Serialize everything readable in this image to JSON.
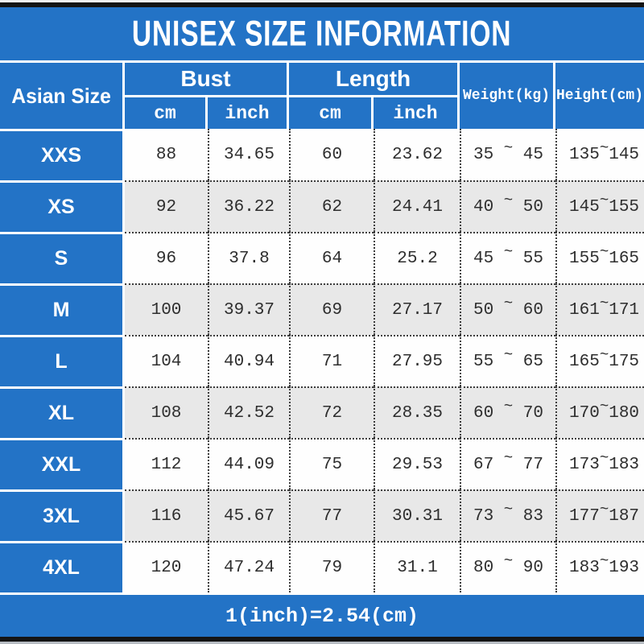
{
  "title": "UNISEX SIZE INFORMATION",
  "colors": {
    "blue": "#2373c6",
    "row_alt": "#e8e8e8",
    "row_white": "#fefefe",
    "text_dark": "#2e2e2e",
    "bar_black": "#141414",
    "dot": "#3d3d3d"
  },
  "table": {
    "range_separator": "~",
    "header": {
      "size_col": "Asian Size",
      "groups": [
        {
          "label": "Bust",
          "sub": [
            "cm",
            "inch"
          ]
        },
        {
          "label": "Length",
          "sub": [
            "cm",
            "inch"
          ]
        }
      ],
      "weight": "Weight(kg)",
      "height": "Height(cm)"
    },
    "rows": [
      {
        "size": "XXS",
        "bust_cm": "88",
        "bust_inch": "34.65",
        "length_cm": "60",
        "length_inch": "23.62",
        "weight_min": "35",
        "weight_max": "45",
        "height_min": "135",
        "height_max": "145"
      },
      {
        "size": "XS",
        "bust_cm": "92",
        "bust_inch": "36.22",
        "length_cm": "62",
        "length_inch": "24.41",
        "weight_min": "40",
        "weight_max": "50",
        "height_min": "145",
        "height_max": "155"
      },
      {
        "size": "S",
        "bust_cm": "96",
        "bust_inch": "37.8",
        "length_cm": "64",
        "length_inch": "25.2",
        "weight_min": "45",
        "weight_max": "55",
        "height_min": "155",
        "height_max": "165"
      },
      {
        "size": "M",
        "bust_cm": "100",
        "bust_inch": "39.37",
        "length_cm": "69",
        "length_inch": "27.17",
        "weight_min": "50",
        "weight_max": "60",
        "height_min": "161",
        "height_max": "171"
      },
      {
        "size": "L",
        "bust_cm": "104",
        "bust_inch": "40.94",
        "length_cm": "71",
        "length_inch": "27.95",
        "weight_min": "55",
        "weight_max": "65",
        "height_min": "165",
        "height_max": "175"
      },
      {
        "size": "XL",
        "bust_cm": "108",
        "bust_inch": "42.52",
        "length_cm": "72",
        "length_inch": "28.35",
        "weight_min": "60",
        "weight_max": "70",
        "height_min": "170",
        "height_max": "180"
      },
      {
        "size": "XXL",
        "bust_cm": "112",
        "bust_inch": "44.09",
        "length_cm": "75",
        "length_inch": "29.53",
        "weight_min": "67",
        "weight_max": "77",
        "height_min": "173",
        "height_max": "183"
      },
      {
        "size": "3XL",
        "bust_cm": "116",
        "bust_inch": "45.67",
        "length_cm": "77",
        "length_inch": "30.31",
        "weight_min": "73",
        "weight_max": "83",
        "height_min": "177",
        "height_max": "187"
      },
      {
        "size": "4XL",
        "bust_cm": "120",
        "bust_inch": "47.24",
        "length_cm": "79",
        "length_inch": "31.1",
        "weight_min": "80",
        "weight_max": "90",
        "height_min": "183",
        "height_max": "193"
      }
    ]
  },
  "footer": {
    "note": "1(inch)=2.54(cm)"
  }
}
